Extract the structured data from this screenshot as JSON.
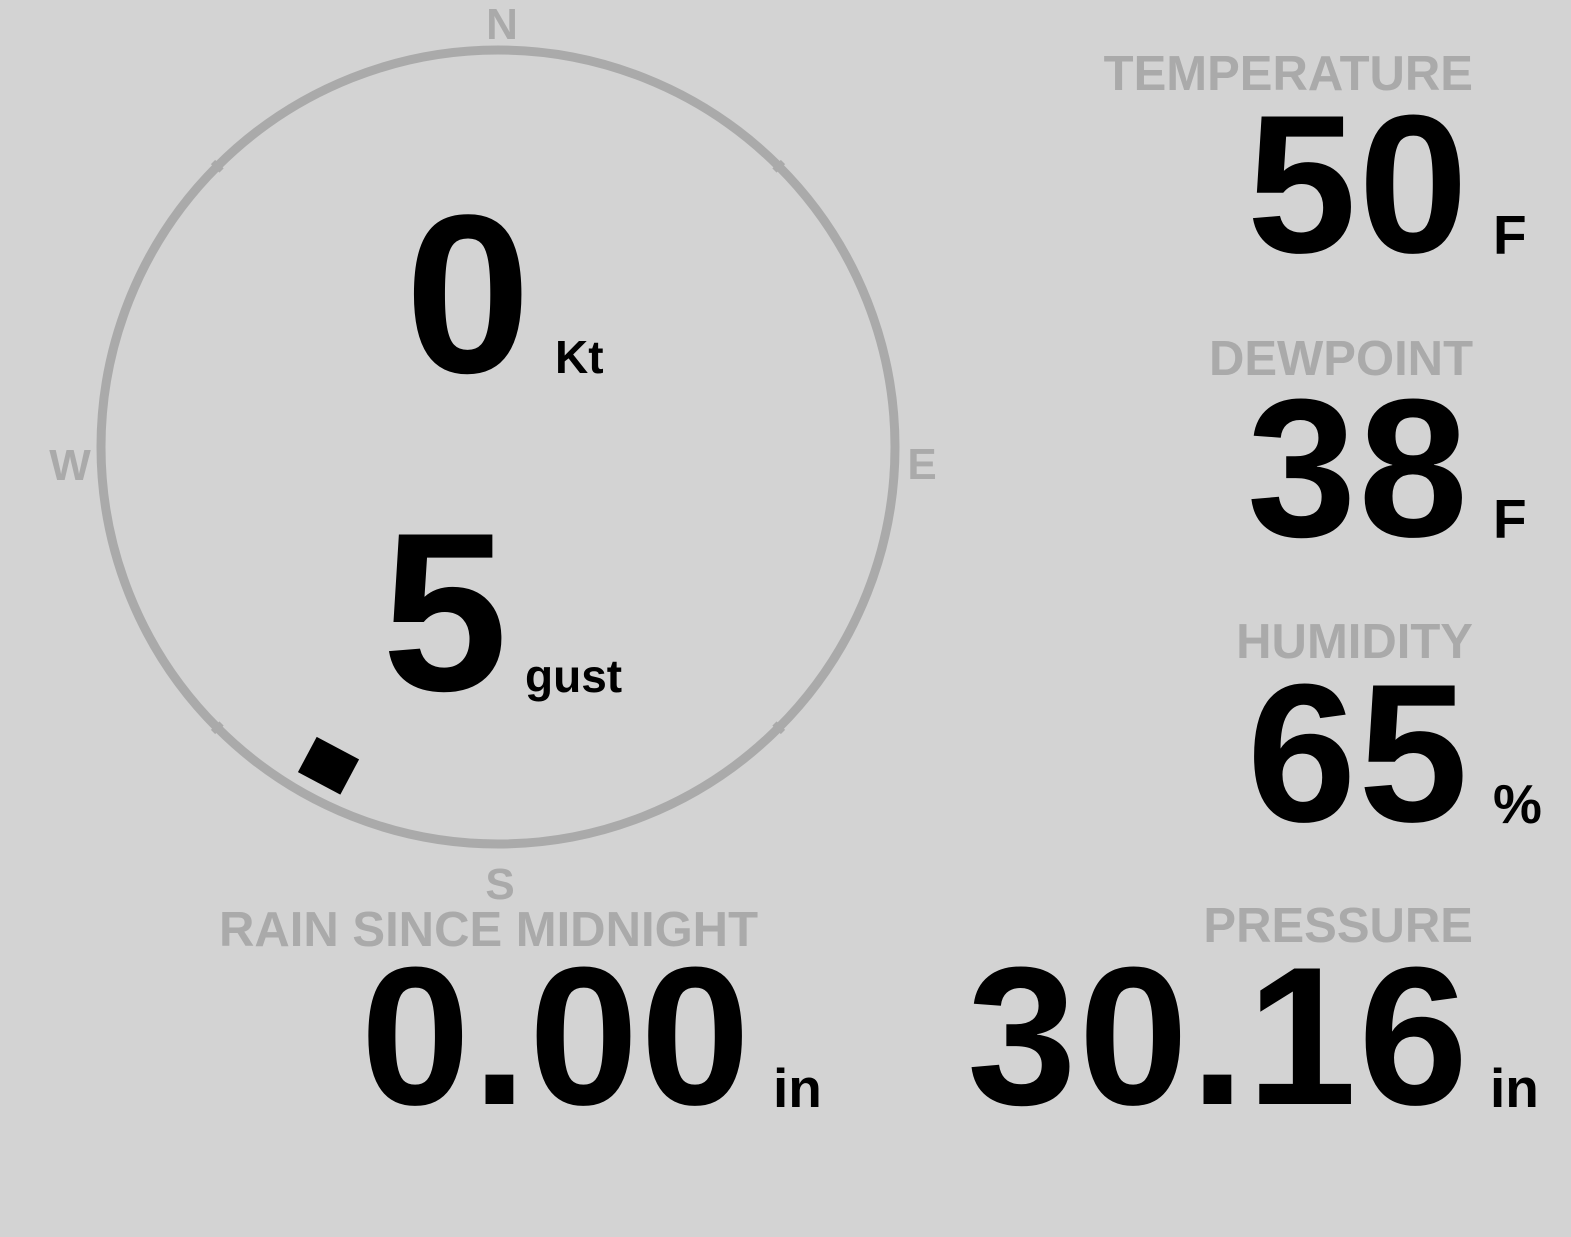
{
  "compass": {
    "north": "N",
    "east": "E",
    "south": "S",
    "west": "W",
    "direction_deg": 208,
    "ring_color": "#aaaaaa",
    "marker_color": "#000000"
  },
  "wind": {
    "speed": "0",
    "speed_unit": "Kt",
    "gust": "5",
    "gust_unit": "gust"
  },
  "temperature": {
    "label": "TEMPERATURE",
    "value": "50",
    "unit": "F"
  },
  "dewpoint": {
    "label": "DEWPOINT",
    "value": "38",
    "unit": "F"
  },
  "humidity": {
    "label": "HUMIDITY",
    "value": "65",
    "unit": "%"
  },
  "pressure": {
    "label": "PRESSURE",
    "value": "30.16",
    "unit": "in"
  },
  "rain": {
    "label": "RAIN SINCE MIDNIGHT",
    "value": "0.00",
    "unit": "in"
  }
}
